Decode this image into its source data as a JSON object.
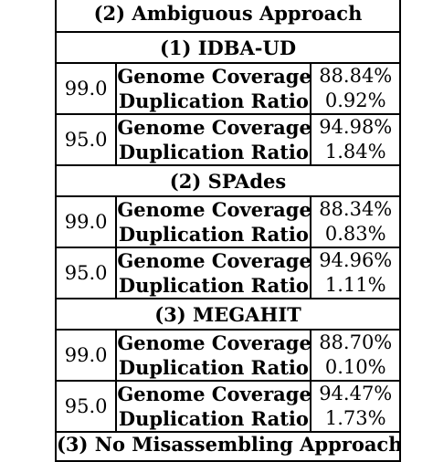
{
  "approach_title": "(2) Ambiguous Approach",
  "next_approach_title": "(3) No Misassembling Approach",
  "assemblers": [
    {
      "name": "(1) IDBA-UD",
      "rows": [
        {
          "threshold": "99.0",
          "metrics": [
            "Genome Coverage",
            "Duplication Ratio"
          ],
          "values": [
            "88.84%",
            "0.92%"
          ]
        },
        {
          "threshold": "95.0",
          "metrics": [
            "Genome Coverage",
            "Duplication Ratio"
          ],
          "values": [
            "94.98%",
            "1.84%"
          ]
        }
      ]
    },
    {
      "name": "(2) SPAdes",
      "rows": [
        {
          "threshold": "99.0",
          "metrics": [
            "Genome Coverage",
            "Duplication Ratio"
          ],
          "values": [
            "88.34%",
            "0.83%"
          ]
        },
        {
          "threshold": "95.0",
          "metrics": [
            "Genome Coverage",
            "Duplication Ratio"
          ],
          "values": [
            "94.96%",
            "1.11%"
          ]
        }
      ]
    },
    {
      "name": "(3) MEGAHIT",
      "rows": [
        {
          "threshold": "99.0",
          "metrics": [
            "Genome Coverage",
            "Duplication Ratio"
          ],
          "values": [
            "88.70%",
            "0.10%"
          ]
        },
        {
          "threshold": "95.0",
          "metrics": [
            "Genome Coverage",
            "Duplication Ratio"
          ],
          "values": [
            "94.47%",
            "1.73%"
          ]
        }
      ]
    }
  ]
}
